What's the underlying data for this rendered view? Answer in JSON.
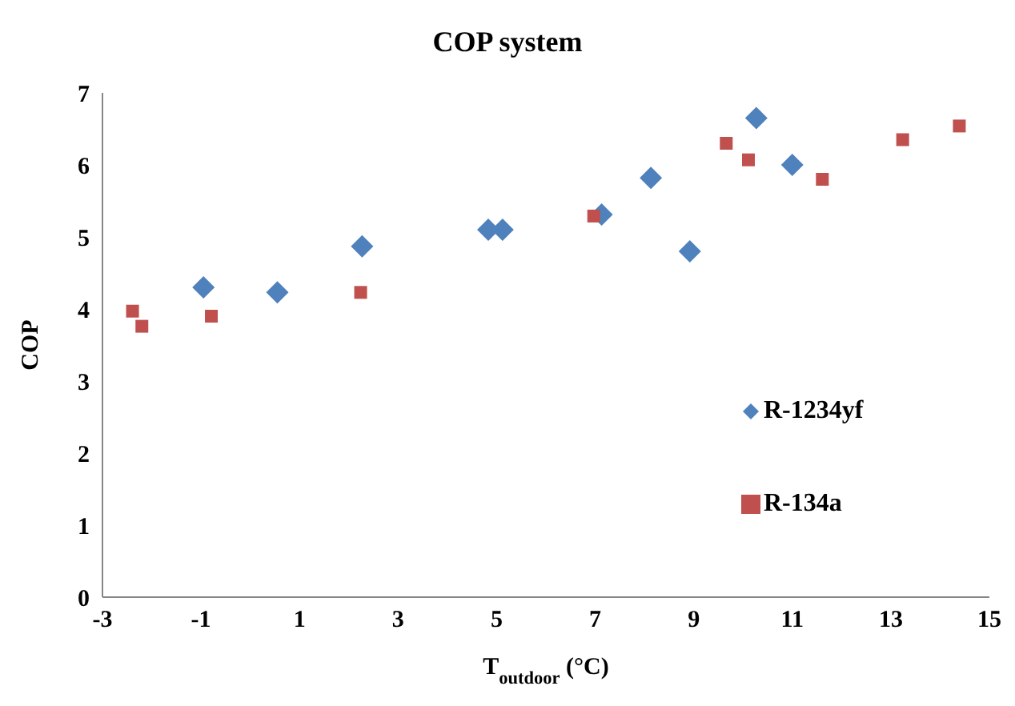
{
  "chart_data": {
    "type": "scatter",
    "title": "COP system",
    "xlabel": "T$_{outdoor}$  (°C)",
    "ylabel": "COP",
    "xlim": [
      -3,
      15
    ],
    "xticks": [
      -3,
      -1,
      1,
      3,
      5,
      7,
      9,
      11,
      13,
      15
    ],
    "ylim": [
      0,
      7
    ],
    "yticks": [
      0,
      1,
      2,
      3,
      4,
      5,
      6,
      7
    ],
    "grid": false,
    "legend": "right",
    "series": [
      {
        "name": "R-1234yf",
        "color": "#4f81bd",
        "marker": "diamond",
        "x": [
          -0.95,
          0.55,
          2.27,
          4.83,
          5.12,
          7.13,
          8.13,
          8.92,
          10.27,
          11.0
        ],
        "values": [
          4.3,
          4.23,
          4.87,
          5.1,
          5.1,
          5.31,
          5.82,
          4.8,
          6.65,
          6.0
        ]
      },
      {
        "name": "R-134a",
        "color": "#c0504d",
        "marker": "square",
        "x": [
          -2.39,
          -2.2,
          -0.79,
          2.24,
          6.97,
          9.66,
          10.11,
          11.61,
          13.24,
          14.39
        ],
        "values": [
          3.97,
          3.76,
          3.9,
          4.23,
          5.29,
          6.3,
          6.07,
          5.8,
          6.35,
          6.54
        ]
      }
    ]
  }
}
